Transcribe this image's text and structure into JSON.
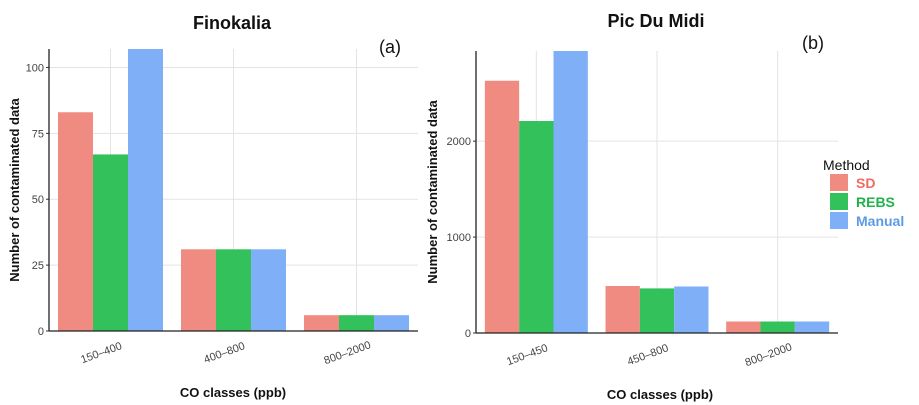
{
  "legend": {
    "title": "Method",
    "position": "right",
    "items": [
      {
        "label": "SD",
        "color": "#f08b82"
      },
      {
        "label": "REBS",
        "color": "#33c15c"
      },
      {
        "label": "Manual",
        "color": "#7fb0f7"
      }
    ]
  },
  "chart_data": [
    {
      "type": "bar",
      "title": "Finokalia",
      "tag": "(a)",
      "xlabel": "CO classes (ppb)",
      "ylabel": "Number of contaminated data",
      "categories": [
        "150–400",
        "400–800",
        "800–2000"
      ],
      "series": [
        {
          "name": "SD",
          "values": [
            83,
            31,
            6
          ]
        },
        {
          "name": "REBS",
          "values": [
            67,
            31,
            6
          ]
        },
        {
          "name": "Manual",
          "values": [
            107,
            31,
            6
          ]
        }
      ],
      "yticks": [
        0,
        25,
        50,
        75,
        100
      ],
      "ylim": [
        0,
        107
      ],
      "grid": true
    },
    {
      "type": "bar",
      "title": "Pic Du Midi",
      "tag": "(b)",
      "xlabel": "CO classes (ppb)",
      "ylabel": "Number of contaminated data",
      "categories": [
        "150–450",
        "450–800",
        "800–2000"
      ],
      "series": [
        {
          "name": "SD",
          "values": [
            2630,
            490,
            120
          ]
        },
        {
          "name": "REBS",
          "values": [
            2210,
            465,
            120
          ]
        },
        {
          "name": "Manual",
          "values": [
            2940,
            485,
            120
          ]
        }
      ],
      "yticks": [
        0,
        1000,
        2000
      ],
      "ylim": [
        0,
        2940
      ],
      "grid": true
    }
  ]
}
